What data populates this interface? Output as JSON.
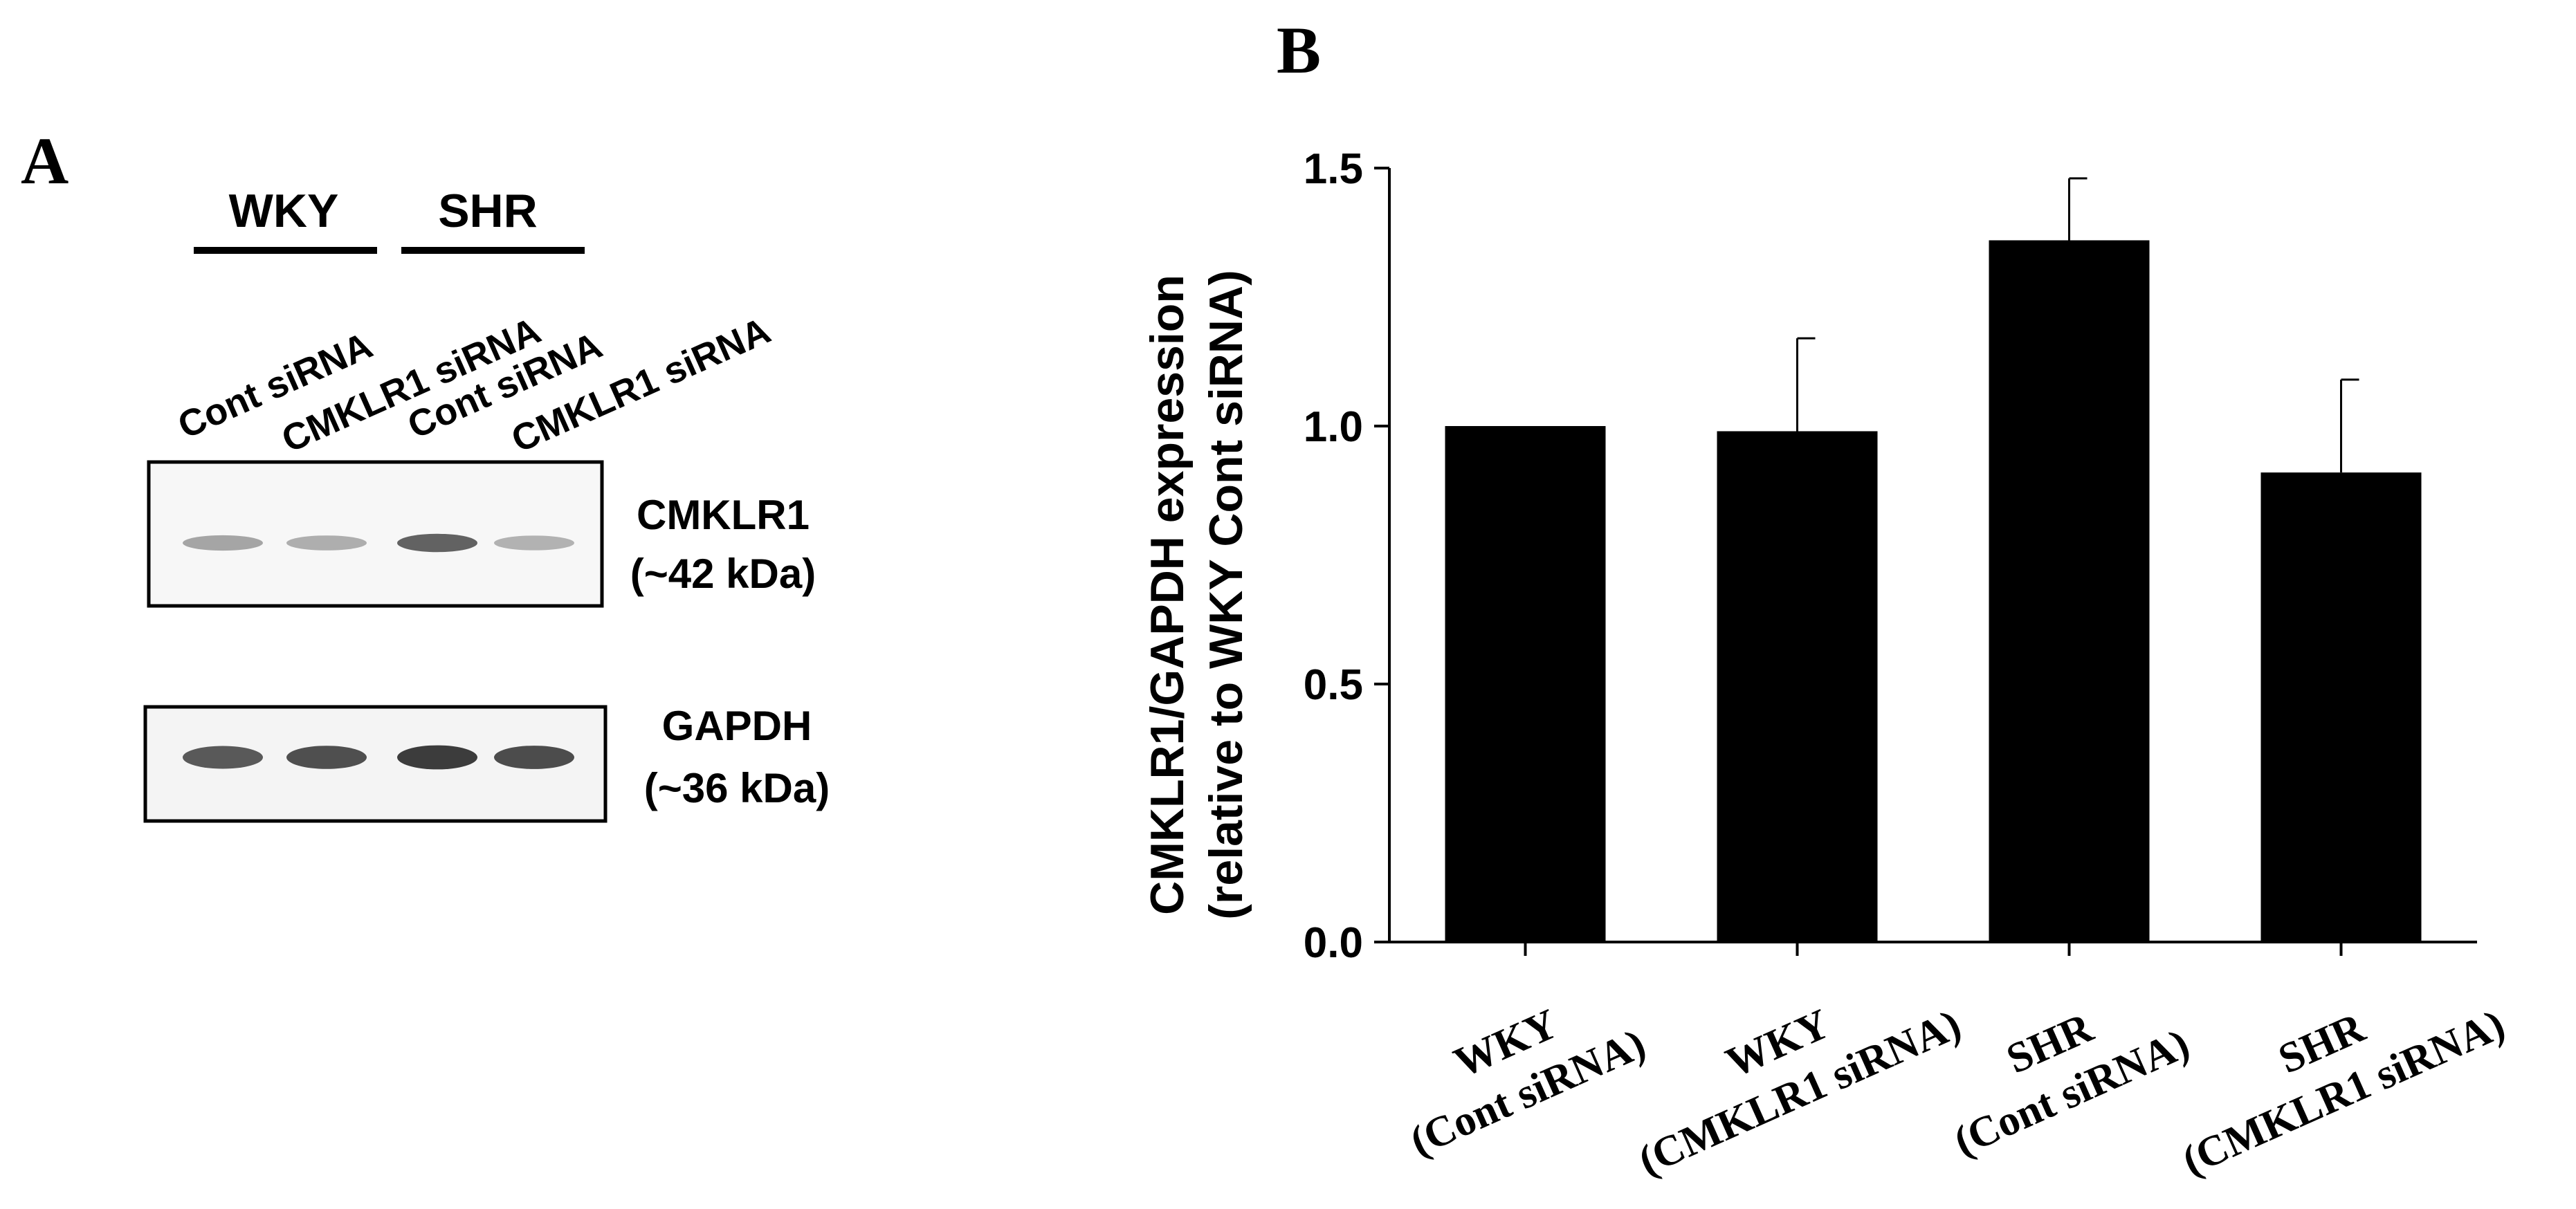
{
  "panel_a": {
    "letter": "A",
    "groups": [
      {
        "name": "WKY"
      },
      {
        "name": "SHR"
      }
    ],
    "lanes": [
      "Cont siRNA",
      "CMKLR1 siRNA",
      "Cont siRNA",
      "CMKLR1 siRNA"
    ],
    "blots": [
      {
        "protein": "CMKLR1",
        "size": "(~42 kDa)",
        "band_intensity": [
          0.35,
          0.3,
          0.7,
          0.28
        ]
      },
      {
        "protein": "GAPDH",
        "size": "(~36 kDa)",
        "band_intensity": [
          0.75,
          0.8,
          0.9,
          0.82
        ]
      }
    ]
  },
  "panel_b": {
    "letter": "B"
  },
  "chart_data": {
    "type": "bar",
    "categories": [
      [
        "WKY",
        "(Cont siRNA)"
      ],
      [
        "WKY",
        "(CMKLR1 siRNA)"
      ],
      [
        "SHR",
        "(Cont siRNA)"
      ],
      [
        "SHR",
        "(CMKLR1 siRNA)"
      ]
    ],
    "values": [
      1.0,
      0.99,
      1.36,
      0.91
    ],
    "error_upper": [
      0.0,
      0.18,
      0.12,
      0.18
    ],
    "title": "",
    "ylabel": [
      "CMKLR1/GAPDH expression",
      "(relative to WKY Cont siRNA)"
    ],
    "xlabel": "",
    "ylim": [
      0,
      1.5
    ],
    "yticks": [
      "0.0",
      "0.5",
      "1.0",
      "1.5"
    ],
    "ytick_values": [
      0,
      0.5,
      1.0,
      1.5
    ],
    "bar_color": "#000000",
    "grid": false
  }
}
